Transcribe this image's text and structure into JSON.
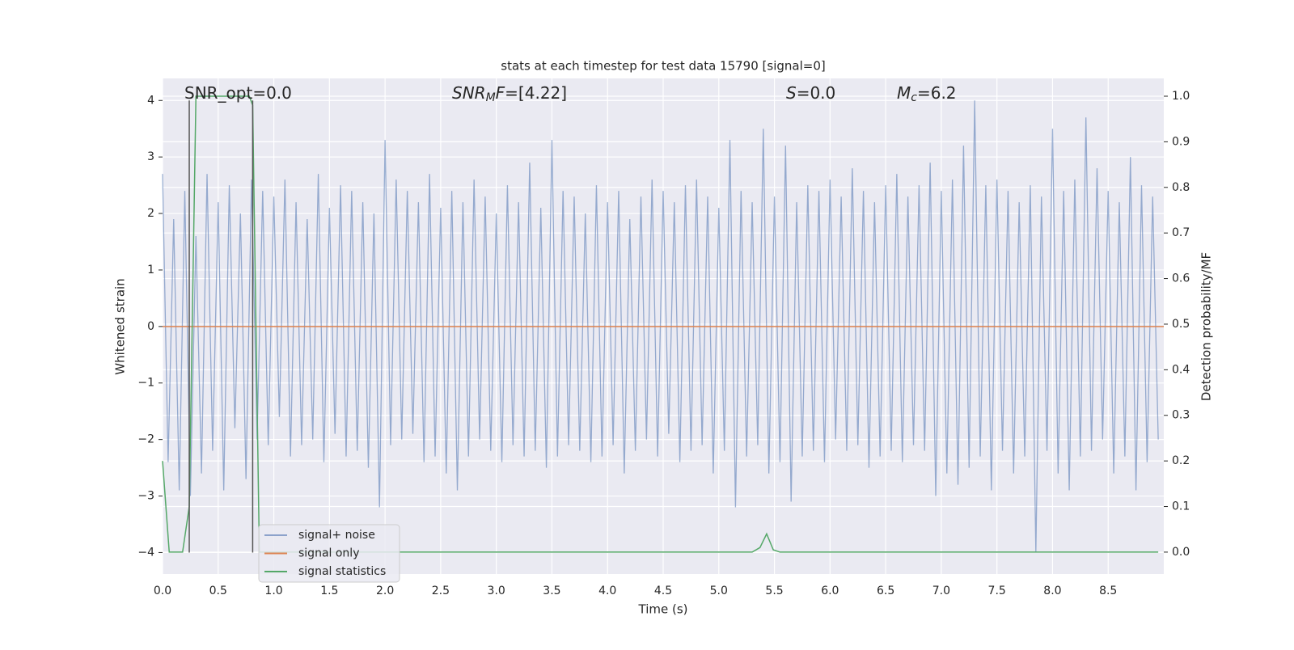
{
  "chart_data": {
    "type": "line",
    "title": "stats at each timestep for test data 15790 [signal=0]",
    "x_label": "Time (s)",
    "y_label": "Whitened strain",
    "y2_label": "Detection probability/MF",
    "xlim": [
      0,
      9.0
    ],
    "ylim": [
      -4.38,
      4.39
    ],
    "y2lim": [
      -0.048,
      1.039
    ],
    "grid": true,
    "legend": "best",
    "xticks": [
      {
        "value": 0,
        "label": "0.0"
      },
      {
        "value": 0.5,
        "label": "0.5"
      },
      {
        "value": 1,
        "label": "1.0"
      },
      {
        "value": 1.5,
        "label": "1.5"
      },
      {
        "value": 2,
        "label": "2.0"
      },
      {
        "value": 2.5,
        "label": "2.5"
      },
      {
        "value": 3,
        "label": "3.0"
      },
      {
        "value": 3.5,
        "label": "3.5"
      },
      {
        "value": 4,
        "label": "4.0"
      },
      {
        "value": 4.5,
        "label": "4.5"
      },
      {
        "value": 5,
        "label": "5.0"
      },
      {
        "value": 5.5,
        "label": "5.5"
      },
      {
        "value": 6,
        "label": "6.0"
      },
      {
        "value": 6.5,
        "label": "6.5"
      },
      {
        "value": 7,
        "label": "7.0"
      },
      {
        "value": 7.5,
        "label": "7.5"
      },
      {
        "value": 8,
        "label": "8.0"
      },
      {
        "value": 8.5,
        "label": "8.5"
      }
    ],
    "yticks": [
      {
        "value": -4,
        "label": "−4"
      },
      {
        "value": -3,
        "label": "−3"
      },
      {
        "value": -2,
        "label": "−2"
      },
      {
        "value": -1,
        "label": "−1"
      },
      0,
      1,
      2,
      3,
      4
    ],
    "y2ticks": [
      {
        "value": 0,
        "label": "0.0"
      },
      0.1,
      0.2,
      0.3,
      0.4,
      0.5,
      0.6,
      0.7,
      0.8,
      0.9,
      {
        "value": 1,
        "label": "1.0"
      }
    ],
    "annotations": [
      {
        "parts": [
          {
            "text": "SNR_opt=0.0"
          }
        ]
      },
      {
        "parts": [
          {
            "text": "SNR",
            "italic": true
          },
          {
            "text": "M",
            "italic": true,
            "sub": true
          },
          {
            "text": "F",
            "italic": true
          },
          {
            "text": "=[4.22]"
          }
        ]
      },
      {
        "parts": [
          {
            "text": "S",
            "italic": true
          },
          {
            "text": "=0.0"
          }
        ]
      },
      {
        "parts": [
          {
            "text": "M",
            "italic": true
          },
          {
            "text": "c",
            "italic": true,
            "sub": true
          },
          {
            "text": "=6.2"
          }
        ]
      }
    ],
    "vertical_lines": {
      "x": [
        0.24,
        0.81
      ],
      "ymin": -4,
      "ymax": 4,
      "color": "#555555"
    },
    "series": [
      {
        "name": "signal+ noise",
        "color": "#4c72b0",
        "x": [
          0,
          0.05,
          0.1,
          0.15,
          0.2,
          0.25,
          0.3,
          0.35,
          0.4,
          0.45,
          0.5,
          0.55,
          0.6,
          0.65,
          0.7,
          0.75,
          0.8,
          0.85,
          0.9,
          0.95,
          1,
          1.05,
          1.1,
          1.15,
          1.2,
          1.25,
          1.3,
          1.35,
          1.4,
          1.45,
          1.5,
          1.55,
          1.6,
          1.65,
          1.7,
          1.75,
          1.8,
          1.85,
          1.9,
          1.95,
          2,
          2.05,
          2.1,
          2.15,
          2.2,
          2.25,
          2.3,
          2.35,
          2.4,
          2.45,
          2.5,
          2.55,
          2.6,
          2.65,
          2.7,
          2.75,
          2.8,
          2.85,
          2.9,
          2.95,
          3,
          3.05,
          3.1,
          3.15,
          3.2,
          3.25,
          3.3,
          3.35,
          3.4,
          3.45,
          3.5,
          3.55,
          3.6,
          3.65,
          3.7,
          3.75,
          3.8,
          3.85,
          3.9,
          3.95,
          4,
          4.05,
          4.1,
          4.15,
          4.2,
          4.25,
          4.3,
          4.35,
          4.4,
          4.45,
          4.5,
          4.55,
          4.6,
          4.65,
          4.7,
          4.75,
          4.8,
          4.85,
          4.9,
          4.95,
          5,
          5.05,
          5.1,
          5.15,
          5.2,
          5.25,
          5.3,
          5.35,
          5.4,
          5.45,
          5.5,
          5.55,
          5.6,
          5.65,
          5.7,
          5.75,
          5.8,
          5.85,
          5.9,
          5.95,
          6,
          6.05,
          6.1,
          6.15,
          6.2,
          6.25,
          6.3,
          6.35,
          6.4,
          6.45,
          6.5,
          6.55,
          6.6,
          6.65,
          6.7,
          6.75,
          6.8,
          6.85,
          6.9,
          6.95,
          7,
          7.05,
          7.1,
          7.15,
          7.2,
          7.25,
          7.3,
          7.35,
          7.4,
          7.45,
          7.5,
          7.55,
          7.6,
          7.65,
          7.7,
          7.75,
          7.8,
          7.85,
          7.9,
          7.95,
          8,
          8.05,
          8.1,
          8.15,
          8.2,
          8.25,
          8.3,
          8.35,
          8.4,
          8.45,
          8.5,
          8.55,
          8.6,
          8.65,
          8.7,
          8.75,
          8.8,
          8.85,
          8.9,
          8.95
        ],
        "values": [
          2.7,
          -2.4,
          1.9,
          -2.9,
          2.4,
          -3.0,
          1.6,
          -2.6,
          2.7,
          -2.2,
          2.2,
          -2.9,
          2.5,
          -1.8,
          2.0,
          -2.7,
          2.6,
          -2.0,
          2.4,
          -2.1,
          2.3,
          -1.6,
          2.6,
          -2.3,
          2.2,
          -2.1,
          1.9,
          -2.0,
          2.7,
          -2.4,
          2.1,
          -1.9,
          2.5,
          -2.3,
          2.4,
          -2.2,
          2.2,
          -2.5,
          2.0,
          -3.2,
          3.3,
          -2.1,
          2.6,
          -2.0,
          2.4,
          -1.9,
          2.2,
          -2.4,
          2.7,
          -2.3,
          2.1,
          -2.6,
          2.4,
          -2.9,
          2.2,
          -2.3,
          2.6,
          -2.0,
          2.3,
          -2.2,
          2.0,
          -2.4,
          2.5,
          -2.1,
          2.2,
          -2.3,
          2.9,
          -2.2,
          2.1,
          -2.5,
          3.3,
          -2.3,
          2.4,
          -2.1,
          2.3,
          -2.2,
          2.0,
          -2.4,
          2.5,
          -2.3,
          2.2,
          -2.1,
          2.4,
          -2.6,
          1.9,
          -2.2,
          2.3,
          -2.0,
          2.6,
          -2.3,
          2.4,
          -1.9,
          2.2,
          -2.4,
          2.5,
          -2.2,
          2.6,
          -2.1,
          2.3,
          -2.6,
          2.1,
          -2.2,
          3.3,
          -3.2,
          2.4,
          -2.3,
          2.2,
          -2.1,
          3.5,
          -2.6,
          2.3,
          -2.4,
          3.2,
          -3.1,
          2.2,
          -2.3,
          2.5,
          -2.2,
          2.4,
          -2.4,
          2.6,
          -2.0,
          2.3,
          -2.2,
          2.8,
          -2.1,
          2.4,
          -2.5,
          2.2,
          -2.3,
          2.5,
          -2.2,
          2.7,
          -2.4,
          2.3,
          -2.1,
          2.5,
          -2.2,
          2.9,
          -3.0,
          2.4,
          -2.6,
          2.6,
          -2.8,
          3.2,
          -2.5,
          4.0,
          -2.3,
          2.5,
          -2.9,
          2.6,
          -2.2,
          2.4,
          -2.6,
          2.2,
          -2.3,
          2.5,
          -4.0,
          2.3,
          -2.2,
          3.5,
          -2.6,
          2.4,
          -2.9,
          2.6,
          -2.3,
          3.7,
          -2.2,
          2.8,
          -2.0,
          2.4,
          -2.6,
          2.2,
          -2.3,
          3.0,
          -2.9,
          2.5,
          -2.4,
          2.3,
          -2.0
        ]
      },
      {
        "name": "signal only",
        "color": "#dd8452",
        "x": [
          0,
          9.0
        ],
        "values": [
          0,
          0
        ]
      },
      {
        "name": "signal statistics",
        "color": "#55a868",
        "axis": "y2",
        "x": [
          0,
          0.06,
          0.18,
          0.24,
          0.3,
          0.78,
          0.81,
          0.87,
          5.3,
          5.37,
          5.43,
          5.49,
          5.55,
          8.95
        ],
        "values": [
          0.2,
          0.0,
          0.0,
          0.1,
          1.0,
          1.0,
          0.98,
          0.0,
          0.0,
          0.01,
          0.04,
          0.005,
          0.0,
          0.0
        ]
      }
    ]
  }
}
